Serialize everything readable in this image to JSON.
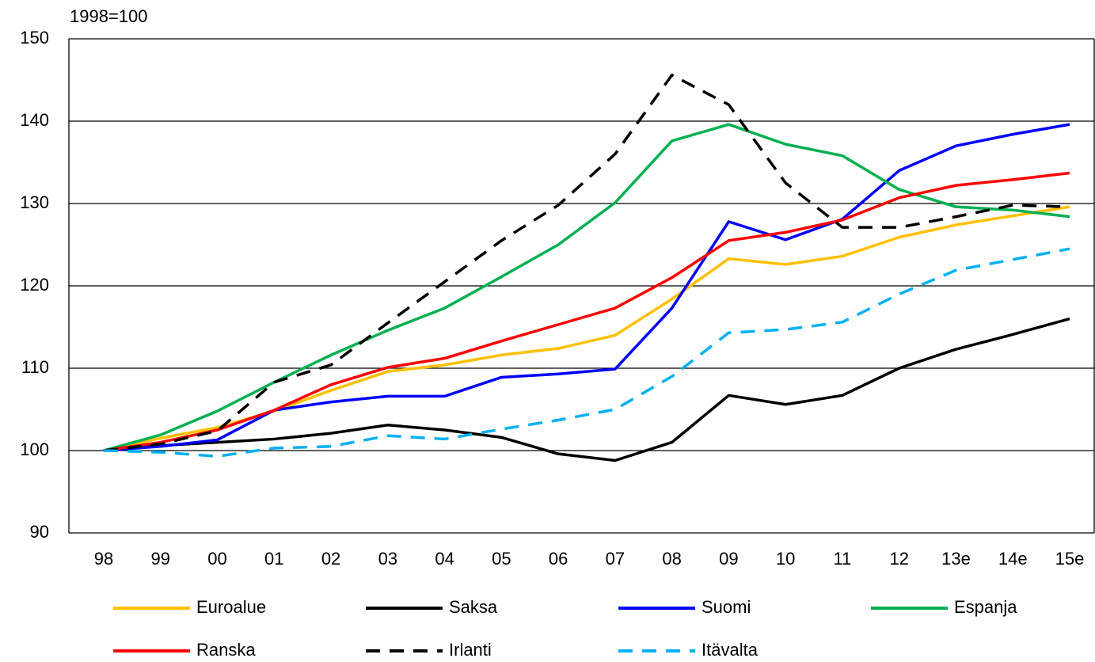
{
  "chart_data": {
    "type": "line",
    "ylabel": "1998=100",
    "categories": [
      "98",
      "99",
      "00",
      "01",
      "02",
      "03",
      "04",
      "05",
      "06",
      "07",
      "08",
      "09",
      "10",
      "11",
      "12",
      "13e",
      "14e",
      "15e"
    ],
    "ylim": [
      90,
      150
    ],
    "yticks": [
      90,
      100,
      110,
      120,
      130,
      140,
      150
    ],
    "grid": true,
    "series": [
      {
        "name": "Euroalue",
        "color": "#ffc000",
        "dashed": false,
        "values": [
          100,
          101.5,
          102.8,
          104.8,
          107.3,
          109.6,
          110.4,
          111.6,
          112.4,
          114,
          118.4,
          123.3,
          122.6,
          123.6,
          125.9,
          127.4,
          128.5,
          129.6
        ]
      },
      {
        "name": "Saksa",
        "color": "#000000",
        "dashed": false,
        "values": [
          100,
          100.6,
          101,
          101.4,
          102.1,
          103.1,
          102.5,
          101.6,
          99.6,
          98.8,
          101,
          106.7,
          105.6,
          106.7,
          110,
          112.3,
          114.1,
          116
        ]
      },
      {
        "name": "Suomi",
        "color": "#0000ff",
        "dashed": false,
        "values": [
          100,
          100.5,
          101.3,
          104.9,
          105.9,
          106.6,
          106.6,
          108.9,
          109.3,
          109.9,
          117.3,
          127.8,
          125.6,
          128.1,
          134,
          137,
          138.4,
          139.6
        ]
      },
      {
        "name": "Espanja",
        "color": "#00b050",
        "dashed": false,
        "values": [
          100,
          101.9,
          104.8,
          108.3,
          111.6,
          114.6,
          117.3,
          121.1,
          125,
          130.1,
          137.6,
          139.6,
          137.2,
          135.8,
          131.7,
          129.6,
          129.2,
          128.4
        ]
      },
      {
        "name": "Ranska",
        "color": "#ff0000",
        "dashed": false,
        "values": [
          100,
          101,
          102.5,
          104.9,
          108,
          110.1,
          111.2,
          113.3,
          115.3,
          117.3,
          121,
          125.5,
          126.5,
          128,
          130.7,
          132.2,
          132.9,
          133.7
        ]
      },
      {
        "name": "Irlanti",
        "color": "#000000",
        "dashed": true,
        "values": [
          100,
          100.8,
          102.4,
          108.3,
          110.4,
          115.5,
          120.5,
          125.5,
          129.8,
          136,
          145.6,
          142,
          132.5,
          127.1,
          127.1,
          128.4,
          129.8,
          129.6
        ]
      },
      {
        "name": "Itävalta",
        "color": "#00b0f0",
        "dashed": true,
        "values": [
          100,
          99.8,
          99.3,
          100.3,
          100.5,
          101.8,
          101.4,
          102.6,
          103.7,
          105,
          109,
          114.3,
          114.7,
          115.6,
          119,
          121.9,
          123.2,
          124.5
        ]
      }
    ]
  }
}
